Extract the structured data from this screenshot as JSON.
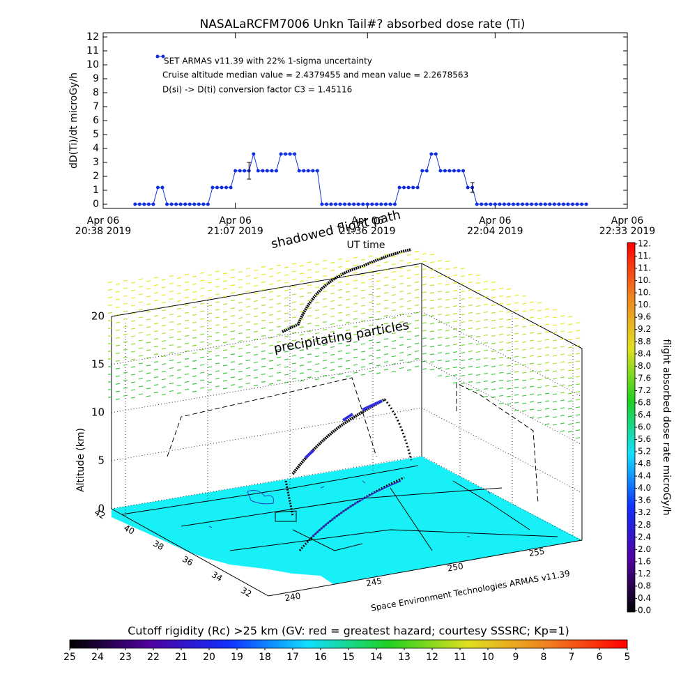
{
  "chart_data": [
    {
      "type": "line",
      "title": "NASALaRCFM7006  Unkn Tail#? absorbed dose rate (Ti)",
      "ylabel": "dD(Ti)/dt microGy/h",
      "xlabel": "UT time",
      "x": [
        "20:45",
        "20:46",
        "20:47",
        "20:48",
        "20:49",
        "20:50",
        "20:51",
        "20:52",
        "20:53",
        "20:54",
        "20:55",
        "20:56",
        "20:57",
        "20:58",
        "20:59",
        "21:00",
        "21:01",
        "21:02",
        "21:03",
        "21:04",
        "21:05",
        "21:06",
        "21:07",
        "21:08",
        "21:09",
        "21:10",
        "21:11",
        "21:12",
        "21:13",
        "21:14",
        "21:15",
        "21:16",
        "21:17",
        "21:18",
        "21:19",
        "21:20",
        "21:21",
        "21:22",
        "21:23",
        "21:24",
        "21:25",
        "21:26",
        "21:27",
        "21:28",
        "21:29",
        "21:30",
        "21:31",
        "21:32",
        "21:33",
        "21:34",
        "21:35",
        "21:36",
        "21:37",
        "21:38",
        "21:39",
        "21:40",
        "21:41",
        "21:42",
        "21:43",
        "21:44",
        "21:45",
        "21:46",
        "21:47",
        "21:48",
        "21:49",
        "21:50",
        "21:51",
        "21:52",
        "21:53",
        "21:54",
        "21:55",
        "21:56",
        "21:57",
        "21:58",
        "21:59",
        "22:00",
        "22:01",
        "22:02",
        "22:03",
        "22:04",
        "22:05",
        "22:06",
        "22:07",
        "22:08",
        "22:09",
        "22:10",
        "22:11",
        "22:12",
        "22:13",
        "22:14",
        "22:15",
        "22:16",
        "22:17",
        "22:18",
        "22:19",
        "22:20",
        "22:21",
        "22:22",
        "22:23",
        "22:24"
      ],
      "series": [
        {
          "name": "SET ARMAS v11.39 with 22% 1-sigma uncertainty",
          "color": "#1030e0",
          "values": [
            0,
            0,
            0,
            0,
            0,
            1.2,
            1.2,
            0,
            0,
            0,
            0,
            0,
            0,
            0,
            0,
            0,
            0,
            1.2,
            1.2,
            1.2,
            1.2,
            1.2,
            2.4,
            2.4,
            2.4,
            2.4,
            3.6,
            2.4,
            2.4,
            2.4,
            2.4,
            2.4,
            3.6,
            3.6,
            3.6,
            3.6,
            2.4,
            2.4,
            2.4,
            2.4,
            2.4,
            0,
            0,
            0,
            0,
            0,
            0,
            0,
            0,
            0,
            0,
            0,
            0,
            0,
            0,
            0,
            0,
            0,
            1.2,
            1.2,
            1.2,
            1.2,
            1.2,
            2.4,
            2.4,
            3.6,
            3.6,
            2.4,
            2.4,
            2.4,
            2.4,
            2.4,
            2.4,
            1.2,
            1.2,
            0,
            0,
            0,
            0,
            0,
            0,
            0,
            0,
            0,
            0,
            0,
            0,
            0,
            0,
            0,
            0,
            0,
            0,
            0,
            0,
            0,
            0,
            0,
            0,
            0
          ]
        }
      ],
      "error_bars": [
        {
          "x": "21:10",
          "value": 2.4,
          "error": 0.6
        },
        {
          "x": "21:59",
          "value": 1.2,
          "error": 0.35
        }
      ],
      "annotations": [
        "Cruise altitude median value = 2.4379455 and mean value = 2.2678563",
        "D(si) -> D(ti) conversion factor C3 = 1.45116"
      ],
      "xlim": [
        "20:38",
        "22:33"
      ],
      "xticks": [
        {
          "value": "20:38",
          "label": [
            "Apr 06",
            "20:38 2019"
          ]
        },
        {
          "value": "21:07",
          "label": [
            "Apr 06",
            "21:07 2019"
          ]
        },
        {
          "value": "21:36",
          "label": [
            "Apr 06",
            "21:36 2019"
          ]
        },
        {
          "value": "22:04",
          "label": [
            "Apr 06",
            "22:04 2019"
          ]
        },
        {
          "value": "22:33",
          "label": [
            "Apr 06",
            "22:33 2019"
          ]
        }
      ],
      "ylim": [
        -0.3,
        12.3
      ],
      "yticks": [
        0,
        1,
        2,
        3,
        4,
        5,
        6,
        7,
        8,
        9,
        10,
        11,
        12
      ]
    },
    {
      "type": "3d",
      "zlabel": "Altitude (km)",
      "zlim": [
        0,
        20
      ],
      "zticks": [
        0,
        5,
        10,
        15,
        20
      ],
      "lat_ticks": [
        42,
        40,
        38,
        36,
        34,
        32
      ],
      "lon_ticks": [
        240,
        245,
        250,
        255
      ],
      "annotations": [
        "shadowed flight path",
        "precipitating particles",
        "Space Environment Technologies ARMAS v11.39"
      ]
    },
    {
      "type": "colorbar",
      "orientation": "vertical",
      "label": "flight absorbed dose rate microGy/h",
      "lim": [
        0,
        12
      ],
      "colors": [
        "#000000",
        "#5000a0",
        "#1030ff",
        "#10e0ff",
        "#20d020",
        "#e0e020",
        "#f08020",
        "#ff0000"
      ],
      "ticks": [
        "0.0",
        "0.4",
        "0.8",
        "1.2",
        "1.6",
        "2.0",
        "2.4",
        "2.8",
        "3.2",
        "3.6",
        "4.0",
        "4.4",
        "4.8",
        "5.2",
        "5.6",
        "6.0",
        "6.4",
        "6.8",
        "7.2",
        "7.6",
        "8.0",
        "8.4",
        "8.8",
        "9.2",
        "9.6",
        {
          "value": 10.0,
          "label": "10."
        },
        {
          "value": 10.4,
          "label": "10."
        },
        {
          "value": 10.8,
          "label": "10."
        },
        {
          "value": 11.2,
          "label": "11."
        },
        {
          "value": 11.6,
          "label": "11."
        },
        {
          "value": 12.0,
          "label": "12."
        }
      ]
    },
    {
      "type": "colorbar",
      "orientation": "horizontal",
      "label": "Cutoff rigidity (Rc) >25 km (GV: red = greatest hazard; courtesy SSSRC; Kp=1)",
      "lim": [
        25,
        5
      ],
      "colors": [
        "#000000",
        "#5000a0",
        "#1030ff",
        "#10e0ff",
        "#20d020",
        "#e0e020",
        "#f08020",
        "#ff0000"
      ],
      "ticks": [
        25,
        24,
        23,
        22,
        21,
        20,
        19,
        18,
        17,
        16,
        15,
        14,
        13,
        12,
        11,
        10,
        9,
        8,
        7,
        6,
        5
      ]
    }
  ]
}
